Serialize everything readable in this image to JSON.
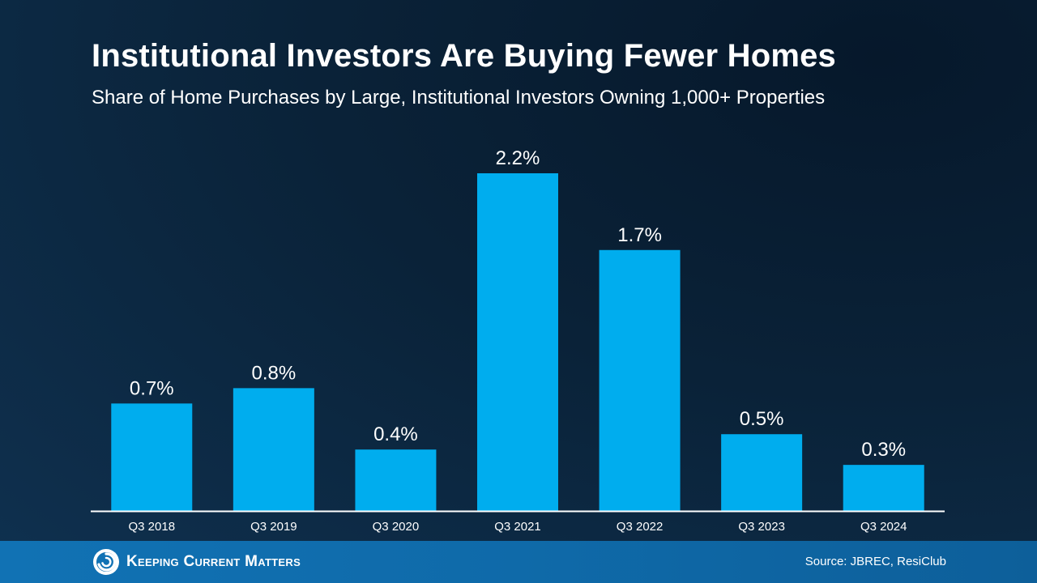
{
  "header": {
    "title": "Institutional Investors Are Buying Fewer Homes",
    "subtitle": "Share of Home Purchases by Large, Institutional Investors Owning 1,000+ Properties"
  },
  "footer": {
    "brand": "Keeping Current Matters",
    "source": "Source: JBREC, ResiClub"
  },
  "colors": {
    "bar": "#00adee",
    "axis": "#ffffff",
    "background": "#0a2238",
    "footer": "#1172b4"
  },
  "chart_data": {
    "type": "bar",
    "categories": [
      "Q3 2018",
      "Q3 2019",
      "Q3 2020",
      "Q3 2021",
      "Q3 2022",
      "Q3 2023",
      "Q3 2024"
    ],
    "values": [
      0.7,
      0.8,
      0.4,
      2.2,
      1.7,
      0.5,
      0.3
    ],
    "data_labels": [
      "0.7%",
      "0.8%",
      "0.4%",
      "2.2%",
      "1.7%",
      "0.5%",
      "0.3%"
    ],
    "unit": "%",
    "title": "Institutional Investors Are Buying Fewer Homes",
    "subtitle": "Share of Home Purchases by Large, Institutional Investors Owning 1,000+ Properties",
    "xlabel": "",
    "ylabel": "",
    "ylim": [
      0,
      2.2
    ],
    "grid": false,
    "legend": "none"
  }
}
